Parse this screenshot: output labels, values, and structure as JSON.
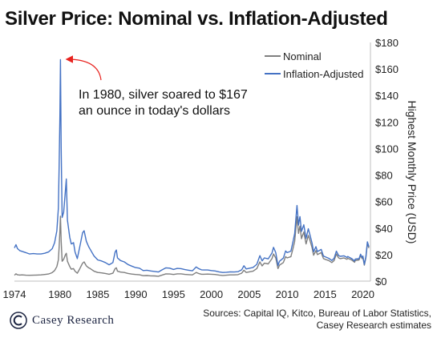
{
  "title": "Silver Price: Nominal vs. Inflation-Adjusted",
  "brand": {
    "name": "Casey Research",
    "logo_icon": "casey-c-logo-icon"
  },
  "source": {
    "line1": "Sources: Capital IQ, Kitco, Bureau of Labor Statistics,",
    "line2": "Casey Research estimates"
  },
  "annotation": {
    "line1": "In 1980, silver soared to $167",
    "line2": "an ounce in today's dollars",
    "arrow_color": "#e8231f"
  },
  "chart_data": {
    "type": "line",
    "title": "Silver Price: Nominal vs. Inflation-Adjusted",
    "ylabel": "Highest Monthly Price (USD)",
    "xlabel": "",
    "ylim": [
      0,
      180
    ],
    "xlim": [
      1974,
      2021
    ],
    "yticks": [
      "$0",
      "$20",
      "$40",
      "$60",
      "$80",
      "$100",
      "$120",
      "$140",
      "$160",
      "$180"
    ],
    "xticks": [
      "1974",
      "1980",
      "1985",
      "1990",
      "1995",
      "2000",
      "2005",
      "2010",
      "2015",
      "2020"
    ],
    "y_axis_position": "right",
    "grid": false,
    "legend_position": "top-right",
    "series": [
      {
        "name": "Nominal",
        "color": "#7f7f7f",
        "points": [
          [
            1974.0,
            4.5
          ],
          [
            1974.2,
            5.5
          ],
          [
            1974.4,
            4.8
          ],
          [
            1974.7,
            4.6
          ],
          [
            1975.0,
            4.7
          ],
          [
            1975.5,
            4.5
          ],
          [
            1976.0,
            4.4
          ],
          [
            1976.5,
            4.5
          ],
          [
            1977.0,
            4.6
          ],
          [
            1977.5,
            4.7
          ],
          [
            1978.0,
            5.0
          ],
          [
            1978.5,
            5.4
          ],
          [
            1978.8,
            6.0
          ],
          [
            1979.0,
            6.5
          ],
          [
            1979.3,
            8.0
          ],
          [
            1979.6,
            11.0
          ],
          [
            1979.8,
            16.0
          ],
          [
            1979.9,
            25.0
          ],
          [
            1980.0,
            38.0
          ],
          [
            1980.08,
            49.0
          ],
          [
            1980.17,
            30.0
          ],
          [
            1980.3,
            15.0
          ],
          [
            1980.5,
            16.5
          ],
          [
            1980.7,
            19.5
          ],
          [
            1980.85,
            21.0
          ],
          [
            1981.0,
            15.0
          ],
          [
            1981.3,
            11.0
          ],
          [
            1981.5,
            9.0
          ],
          [
            1981.8,
            9.5
          ],
          [
            1982.0,
            7.5
          ],
          [
            1982.3,
            6.0
          ],
          [
            1982.6,
            9.0
          ],
          [
            1983.0,
            13.5
          ],
          [
            1983.2,
            14.5
          ],
          [
            1983.5,
            11.5
          ],
          [
            1983.8,
            10.0
          ],
          [
            1984.0,
            9.5
          ],
          [
            1984.5,
            7.5
          ],
          [
            1985.0,
            6.5
          ],
          [
            1985.5,
            6.2
          ],
          [
            1986.0,
            5.8
          ],
          [
            1986.5,
            5.2
          ],
          [
            1987.0,
            6.0
          ],
          [
            1987.3,
            9.5
          ],
          [
            1987.45,
            10.0
          ],
          [
            1987.6,
            7.5
          ],
          [
            1988.0,
            6.8
          ],
          [
            1988.5,
            6.5
          ],
          [
            1989.0,
            5.8
          ],
          [
            1989.5,
            5.3
          ],
          [
            1990.0,
            5.0
          ],
          [
            1990.5,
            4.8
          ],
          [
            1991.0,
            4.1
          ],
          [
            1991.5,
            4.2
          ],
          [
            1992.0,
            4.0
          ],
          [
            1992.5,
            3.9
          ],
          [
            1993.0,
            3.7
          ],
          [
            1993.5,
            4.6
          ],
          [
            1994.0,
            5.5
          ],
          [
            1994.5,
            5.4
          ],
          [
            1995.0,
            5.0
          ],
          [
            1995.5,
            5.5
          ],
          [
            1996.0,
            5.5
          ],
          [
            1996.5,
            5.1
          ],
          [
            1997.0,
            4.9
          ],
          [
            1997.5,
            4.7
          ],
          [
            1998.0,
            6.5
          ],
          [
            1998.3,
            5.8
          ],
          [
            1998.7,
            5.2
          ],
          [
            1999.0,
            5.2
          ],
          [
            1999.5,
            5.3
          ],
          [
            2000.0,
            5.2
          ],
          [
            2000.5,
            5.0
          ],
          [
            2001.0,
            4.6
          ],
          [
            2001.5,
            4.3
          ],
          [
            2002.0,
            4.5
          ],
          [
            2002.5,
            4.7
          ],
          [
            2003.0,
            4.7
          ],
          [
            2003.5,
            4.9
          ],
          [
            2004.0,
            6.0
          ],
          [
            2004.3,
            8.2
          ],
          [
            2004.6,
            6.5
          ],
          [
            2005.0,
            7.0
          ],
          [
            2005.5,
            7.5
          ],
          [
            2006.0,
            9.5
          ],
          [
            2006.4,
            14.5
          ],
          [
            2006.7,
            11.5
          ],
          [
            2007.0,
            13.5
          ],
          [
            2007.5,
            13.0
          ],
          [
            2008.0,
            17.0
          ],
          [
            2008.2,
            20.5
          ],
          [
            2008.5,
            17.5
          ],
          [
            2008.8,
            9.5
          ],
          [
            2009.0,
            12.0
          ],
          [
            2009.5,
            14.0
          ],
          [
            2009.8,
            18.5
          ],
          [
            2010.0,
            17.5
          ],
          [
            2010.5,
            18.5
          ],
          [
            2010.8,
            25.0
          ],
          [
            2011.0,
            30.0
          ],
          [
            2011.3,
            48.5
          ],
          [
            2011.5,
            36.0
          ],
          [
            2011.7,
            41.5
          ],
          [
            2011.9,
            32.0
          ],
          [
            2012.0,
            34.0
          ],
          [
            2012.2,
            37.0
          ],
          [
            2012.5,
            28.0
          ],
          [
            2012.8,
            34.5
          ],
          [
            2013.0,
            31.0
          ],
          [
            2013.3,
            25.0
          ],
          [
            2013.5,
            19.5
          ],
          [
            2013.8,
            23.0
          ],
          [
            2014.0,
            20.0
          ],
          [
            2014.5,
            21.5
          ],
          [
            2014.8,
            17.0
          ],
          [
            2015.0,
            16.5
          ],
          [
            2015.5,
            15.5
          ],
          [
            2015.9,
            14.0
          ],
          [
            2016.2,
            15.5
          ],
          [
            2016.5,
            20.5
          ],
          [
            2016.8,
            17.5
          ],
          [
            2017.0,
            17.0
          ],
          [
            2017.5,
            17.5
          ],
          [
            2017.9,
            16.5
          ],
          [
            2018.0,
            17.2
          ],
          [
            2018.5,
            16.0
          ],
          [
            2018.9,
            14.2
          ],
          [
            2019.0,
            15.5
          ],
          [
            2019.5,
            16.0
          ],
          [
            2019.7,
            19.3
          ],
          [
            2019.9,
            17.0
          ],
          [
            2020.0,
            18.0
          ],
          [
            2020.2,
            12.0
          ],
          [
            2020.4,
            17.5
          ],
          [
            2020.6,
            28.5
          ],
          [
            2020.8,
            25.0
          ]
        ]
      },
      {
        "name": "Inflation-Adjusted",
        "color": "#4472c4",
        "points": [
          [
            1974.0,
            25.0
          ],
          [
            1974.2,
            27.5
          ],
          [
            1974.4,
            24.5
          ],
          [
            1974.7,
            23.0
          ],
          [
            1975.0,
            22.5
          ],
          [
            1975.5,
            21.5
          ],
          [
            1976.0,
            20.5
          ],
          [
            1976.5,
            20.8
          ],
          [
            1977.0,
            20.5
          ],
          [
            1977.5,
            20.5
          ],
          [
            1978.0,
            21.0
          ],
          [
            1978.5,
            22.0
          ],
          [
            1978.8,
            23.5
          ],
          [
            1979.0,
            24.5
          ],
          [
            1979.3,
            29.0
          ],
          [
            1979.6,
            38.0
          ],
          [
            1979.8,
            55.0
          ],
          [
            1979.9,
            85.0
          ],
          [
            1980.0,
            125.0
          ],
          [
            1980.08,
            167.0
          ],
          [
            1980.17,
            100.0
          ],
          [
            1980.3,
            48.0
          ],
          [
            1980.5,
            52.0
          ],
          [
            1980.7,
            66.0
          ],
          [
            1980.85,
            77.0
          ],
          [
            1981.0,
            46.0
          ],
          [
            1981.3,
            33.0
          ],
          [
            1981.5,
            28.0
          ],
          [
            1981.8,
            29.0
          ],
          [
            1982.0,
            22.0
          ],
          [
            1982.3,
            17.0
          ],
          [
            1982.6,
            25.0
          ],
          [
            1983.0,
            36.5
          ],
          [
            1983.2,
            38.0
          ],
          [
            1983.5,
            30.0
          ],
          [
            1983.8,
            26.0
          ],
          [
            1984.0,
            24.0
          ],
          [
            1984.5,
            19.0
          ],
          [
            1985.0,
            16.0
          ],
          [
            1985.5,
            15.2
          ],
          [
            1986.0,
            14.0
          ],
          [
            1986.5,
            12.3
          ],
          [
            1987.0,
            14.0
          ],
          [
            1987.3,
            22.0
          ],
          [
            1987.45,
            23.5
          ],
          [
            1987.6,
            17.5
          ],
          [
            1988.0,
            15.5
          ],
          [
            1988.5,
            14.5
          ],
          [
            1989.0,
            12.5
          ],
          [
            1989.5,
            11.3
          ],
          [
            1990.0,
            10.2
          ],
          [
            1990.5,
            9.8
          ],
          [
            1991.0,
            8.0
          ],
          [
            1991.5,
            8.2
          ],
          [
            1992.0,
            7.7
          ],
          [
            1992.5,
            7.3
          ],
          [
            1993.0,
            6.9
          ],
          [
            1993.5,
            8.5
          ],
          [
            1994.0,
            10.0
          ],
          [
            1994.5,
            9.8
          ],
          [
            1995.0,
            8.8
          ],
          [
            1995.5,
            9.6
          ],
          [
            1996.0,
            9.4
          ],
          [
            1996.5,
            8.7
          ],
          [
            1997.0,
            8.2
          ],
          [
            1997.5,
            7.8
          ],
          [
            1998.0,
            10.7
          ],
          [
            1998.3,
            9.5
          ],
          [
            1998.7,
            8.5
          ],
          [
            1999.0,
            8.4
          ],
          [
            1999.5,
            8.4
          ],
          [
            2000.0,
            8.0
          ],
          [
            2000.5,
            7.7
          ],
          [
            2001.0,
            7.0
          ],
          [
            2001.5,
            6.5
          ],
          [
            2002.0,
            6.7
          ],
          [
            2002.5,
            7.0
          ],
          [
            2003.0,
            6.9
          ],
          [
            2003.5,
            7.1
          ],
          [
            2004.0,
            8.5
          ],
          [
            2004.3,
            11.6
          ],
          [
            2004.6,
            9.2
          ],
          [
            2005.0,
            9.7
          ],
          [
            2005.5,
            10.3
          ],
          [
            2006.0,
            12.7
          ],
          [
            2006.4,
            19.2
          ],
          [
            2006.7,
            15.3
          ],
          [
            2007.0,
            17.5
          ],
          [
            2007.5,
            16.8
          ],
          [
            2008.0,
            21.2
          ],
          [
            2008.2,
            25.5
          ],
          [
            2008.5,
            21.5
          ],
          [
            2008.8,
            11.8
          ],
          [
            2009.0,
            15.0
          ],
          [
            2009.5,
            17.4
          ],
          [
            2009.8,
            22.8
          ],
          [
            2010.0,
            21.5
          ],
          [
            2010.5,
            22.6
          ],
          [
            2010.8,
            30.3
          ],
          [
            2011.0,
            35.8
          ],
          [
            2011.3,
            57.0
          ],
          [
            2011.5,
            42.3
          ],
          [
            2011.7,
            48.7
          ],
          [
            2011.9,
            37.5
          ],
          [
            2012.0,
            39.2
          ],
          [
            2012.2,
            42.5
          ],
          [
            2012.5,
            32.2
          ],
          [
            2012.8,
            39.5
          ],
          [
            2013.0,
            35.3
          ],
          [
            2013.3,
            28.4
          ],
          [
            2013.5,
            22.1
          ],
          [
            2013.8,
            26.0
          ],
          [
            2014.0,
            22.3
          ],
          [
            2014.5,
            23.9
          ],
          [
            2014.8,
            18.9
          ],
          [
            2015.0,
            18.4
          ],
          [
            2015.5,
            17.2
          ],
          [
            2015.9,
            15.6
          ],
          [
            2016.2,
            17.2
          ],
          [
            2016.5,
            22.6
          ],
          [
            2016.8,
            19.3
          ],
          [
            2017.0,
            18.7
          ],
          [
            2017.5,
            19.1
          ],
          [
            2017.9,
            17.9
          ],
          [
            2018.0,
            18.6
          ],
          [
            2018.5,
            17.1
          ],
          [
            2018.9,
            15.2
          ],
          [
            2019.0,
            16.6
          ],
          [
            2019.5,
            16.9
          ],
          [
            2019.7,
            20.3
          ],
          [
            2019.9,
            17.9
          ],
          [
            2020.0,
            18.9
          ],
          [
            2020.2,
            12.6
          ],
          [
            2020.4,
            18.3
          ],
          [
            2020.6,
            29.6
          ],
          [
            2020.8,
            25.9
          ]
        ]
      }
    ]
  }
}
